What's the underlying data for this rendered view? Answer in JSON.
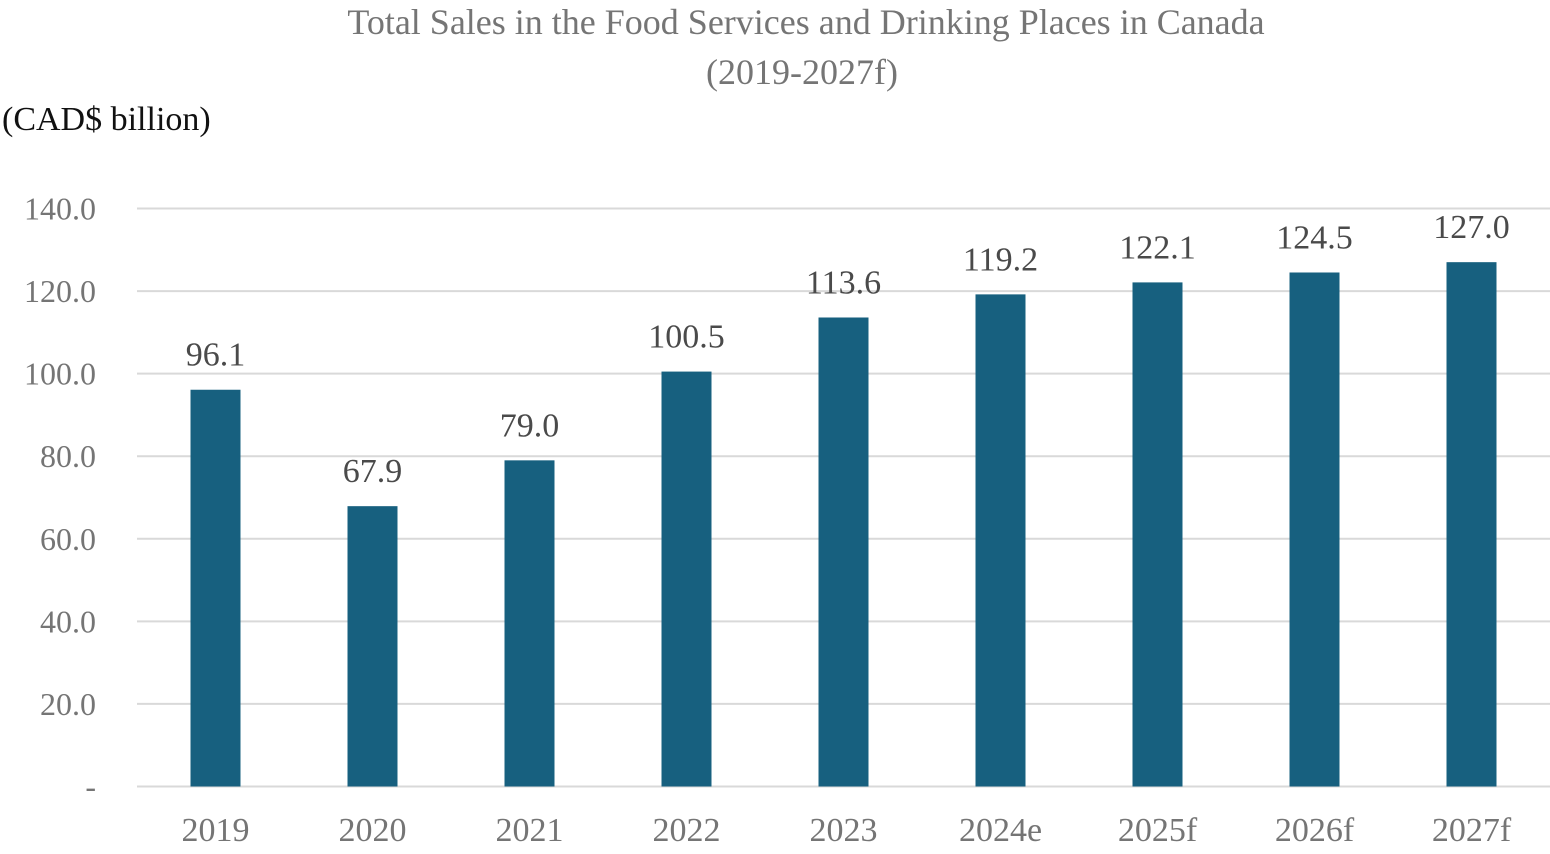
{
  "chart_data": {
    "type": "bar",
    "title": "Total Sales in the Food Services and Drinking Places in Canada",
    "subtitle": "(2019-2027f)",
    "unit_label": "(CAD$ billion)",
    "categories": [
      "2019",
      "2020",
      "2021",
      "2022",
      "2023",
      "2024e",
      "2025f",
      "2026f",
      "2027f"
    ],
    "values": [
      96.1,
      67.9,
      79.0,
      100.5,
      113.6,
      119.2,
      122.1,
      124.5,
      127.0
    ],
    "data_labels": [
      "96.1",
      "67.9",
      "79.0",
      "100.5",
      "113.6",
      "119.2",
      "122.1",
      "124.5",
      "127.0"
    ],
    "yticks": [
      0,
      20,
      40,
      60,
      80,
      100,
      120,
      140
    ],
    "ytick_labels": [
      "-",
      "20.0",
      "40.0",
      "60.0",
      "80.0",
      "100.0",
      "120.0",
      "140.0"
    ],
    "ylim": [
      0,
      140
    ],
    "grid": true,
    "legend": false,
    "colors": {
      "bar": "#17607f",
      "grid": "#d9d9d9",
      "axis_text": "#757575",
      "data_label": "#4a4a4a",
      "unit_text": "#111111"
    }
  }
}
